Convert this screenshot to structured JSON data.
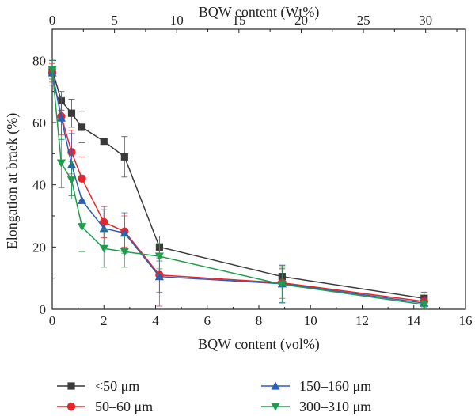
{
  "chart_data": {
    "type": "line",
    "xlabel": "BQW content (vol%)",
    "x2label": "BQW content (Wt%)",
    "ylabel": "Elongation at braek (%)",
    "xlim": [
      0,
      16
    ],
    "ylim": [
      0,
      90
    ],
    "x2lim": [
      0,
      33.2
    ],
    "x_ticks": [
      "0",
      "2",
      "4",
      "6",
      "8",
      "10",
      "12",
      "14",
      "16"
    ],
    "x2_ticks": [
      "0",
      "5",
      "10",
      "15",
      "20",
      "25",
      "30"
    ],
    "y_ticks": [
      "0",
      "20",
      "40",
      "60",
      "80"
    ],
    "grid": false,
    "legend_position": "bottom",
    "series": [
      {
        "name": "<50 μm",
        "color": "#3a3a3a",
        "marker": "square",
        "x": [
          0,
          0.35,
          0.75,
          1.15,
          2.0,
          2.8,
          4.15,
          8.9,
          14.4
        ],
        "y": [
          77,
          67,
          63,
          58.5,
          54,
          49,
          20,
          10.5,
          3.5
        ],
        "err": [
          3,
          3,
          4.5,
          5,
          1,
          6.5,
          3.5,
          2.5,
          2
        ]
      },
      {
        "name": "50–60 μm",
        "color": "#e8262a",
        "marker": "circle",
        "x": [
          0,
          0.35,
          0.75,
          1.15,
          2.0,
          2.8,
          4.15,
          8.9,
          14.4
        ],
        "y": [
          76,
          62,
          50.5,
          42,
          28,
          25,
          11,
          8.5,
          2.5
        ],
        "err": [
          3,
          6,
          7,
          7,
          5,
          5,
          10,
          5,
          1.5
        ]
      },
      {
        "name": "150–160 μm",
        "color": "#2a5fb5",
        "marker": "triangle-up",
        "x": [
          0,
          0.35,
          0.75,
          1.15,
          2.0,
          2.8,
          4.15,
          8.9,
          14.4
        ],
        "y": [
          76,
          61.5,
          46.5,
          35,
          26,
          24.5,
          10.5,
          8.2,
          2.0
        ],
        "err": [
          4,
          7,
          10,
          8,
          6,
          6.5,
          5,
          6,
          1.5
        ]
      },
      {
        "name": "300–310 μm",
        "color": "#1e9e4a",
        "marker": "triangle-down",
        "x": [
          0,
          0.35,
          0.75,
          1.15,
          2.0,
          2.8,
          4.15,
          8.9,
          14.4
        ],
        "y": [
          77,
          47,
          41.5,
          26.5,
          19.5,
          18.5,
          17,
          8.0,
          1.5
        ],
        "err": [
          3,
          8,
          6,
          8,
          6,
          5,
          4,
          6,
          1
        ]
      }
    ]
  }
}
